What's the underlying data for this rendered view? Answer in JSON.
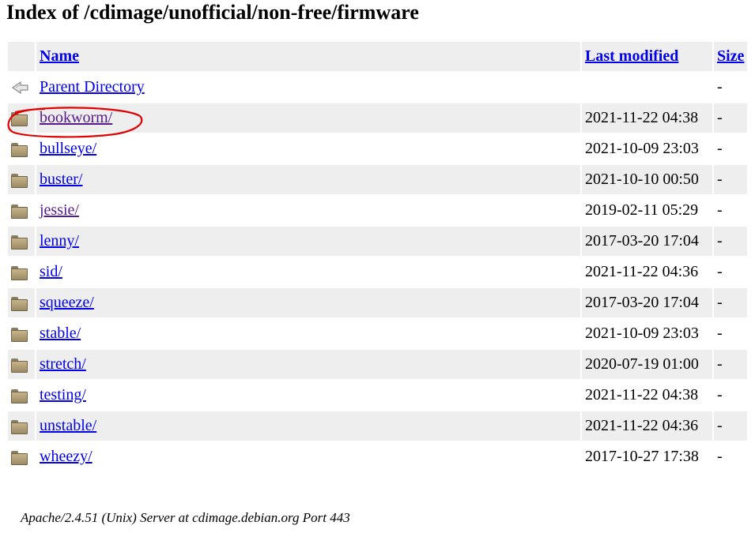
{
  "page": {
    "title": "Index of /cdimage/unofficial/non-free/firmware"
  },
  "table": {
    "headers": {
      "name": "Name",
      "last_modified": "Last modified",
      "size": "Size"
    },
    "parent": {
      "name": "Parent Directory",
      "date": "",
      "size": "-"
    },
    "rows": [
      {
        "name": "bookworm/",
        "date": "2021-11-22 04:38",
        "size": "-"
      },
      {
        "name": "bullseye/",
        "date": "2021-10-09 23:03",
        "size": "-"
      },
      {
        "name": "buster/",
        "date": "2021-10-10 00:50",
        "size": "-"
      },
      {
        "name": "jessie/",
        "date": "2019-02-11 05:29",
        "size": "-"
      },
      {
        "name": "lenny/",
        "date": "2017-03-20 17:04",
        "size": "-"
      },
      {
        "name": "sid/",
        "date": "2021-11-22 04:36",
        "size": "-"
      },
      {
        "name": "squeeze/",
        "date": "2017-03-20 17:04",
        "size": "-"
      },
      {
        "name": "stable/",
        "date": "2021-10-09 23:03",
        "size": "-"
      },
      {
        "name": "stretch/",
        "date": "2020-07-19 01:00",
        "size": "-"
      },
      {
        "name": "testing/",
        "date": "2021-11-22 04:38",
        "size": "-"
      },
      {
        "name": "unstable/",
        "date": "2021-11-22 04:36",
        "size": "-"
      },
      {
        "name": "wheezy/",
        "date": "2017-10-27 17:38",
        "size": "-"
      }
    ]
  },
  "footer": {
    "server": "Apache/2.4.51 (Unix) Server at cdimage.debian.org Port 443"
  },
  "colors": {
    "link": "#0000ee",
    "visited_link": "#551a8b",
    "row_alt": "#eeeeee",
    "annotation": "#e00000"
  },
  "icons": {
    "parent": "back-arrow-icon",
    "folder": "folder-icon"
  }
}
